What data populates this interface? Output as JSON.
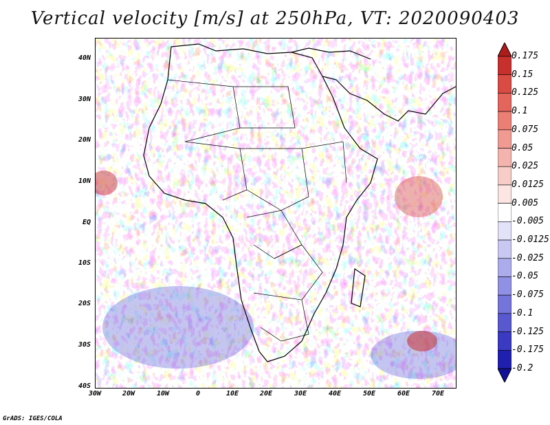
{
  "title": "Vertical velocity [m/s] at 250hPa, VT: 2020090403",
  "credit": "GrADS: IGES/COLA",
  "axes": {
    "lat_labels": [
      "40N",
      "30N",
      "20N",
      "10N",
      "EQ",
      "10S",
      "20S",
      "30S",
      "40S"
    ],
    "lon_labels": [
      "30W",
      "20W",
      "10W",
      "0",
      "10E",
      "20E",
      "30E",
      "40E",
      "50E",
      "60E",
      "70E"
    ]
  },
  "colorbar": {
    "labels": [
      "0.175",
      "0.15",
      "0.125",
      "0.1",
      "0.075",
      "0.05",
      "0.025",
      "0.0125",
      "0.005",
      "-0.005",
      "-0.0125",
      "-0.025",
      "-0.05",
      "-0.075",
      "-0.1",
      "-0.125",
      "-0.175",
      "-0.2"
    ],
    "colors": [
      "#b01c1c",
      "#c8302d",
      "#d94b43",
      "#e3655c",
      "#eb7f76",
      "#f09a92",
      "#f4b3ad",
      "#f8ccc7",
      "#fce5e2",
      "#ffffff",
      "#e2e2f8",
      "#c8c8f2",
      "#acacec",
      "#9090e4",
      "#7474da",
      "#5858cf",
      "#3a3ac2",
      "#2020b0",
      "#10109a"
    ]
  }
}
